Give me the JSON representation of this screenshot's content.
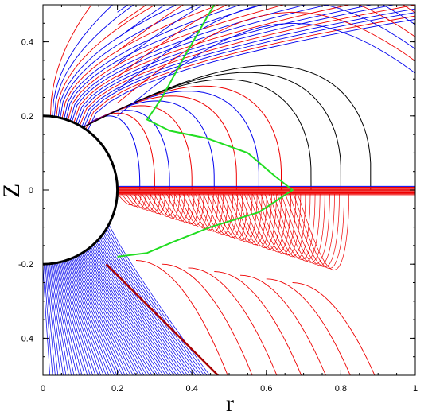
{
  "chart_data": {
    "type": "line",
    "title": "",
    "xlabel": "r",
    "ylabel": "Z",
    "xlim": [
      0,
      1
    ],
    "ylim": [
      -0.5,
      0.5
    ],
    "x_ticks": [
      "0",
      "0.2",
      "0.4",
      "0.6",
      "0.8",
      "1"
    ],
    "y_ticks": [
      "0.4",
      "0.2",
      "0",
      "-0.2",
      "-0.4"
    ],
    "grid": false,
    "legend": "none",
    "colors": {
      "star": "#000000",
      "field_lines_blue": "#0000ee",
      "field_lines_red": "#ee0000",
      "field_lines_black": "#000000",
      "separatrix": "#22dd22"
    },
    "star_radius": 0.2,
    "upper_field_line_footpoints_r": [
      0.02,
      0.04,
      0.06,
      0.08,
      0.1,
      0.12
    ],
    "upper_field_line_tops_z": [
      0.27,
      0.34,
      0.44,
      0.5,
      0.5,
      0.5
    ],
    "closed_loop_apex_r": [
      0.26,
      0.3,
      0.34,
      0.4,
      0.46,
      0.52,
      0.58,
      0.64,
      0.72,
      0.8,
      0.88
    ],
    "disk_plane_z": 0,
    "disk_extent_r": [
      0.2,
      1.0
    ],
    "accretion_stream_start": [
      0.17,
      -0.2
    ],
    "accretion_stream_end": [
      0.47,
      -0.5
    ],
    "separatrix_points": [
      [
        0.46,
        0.5
      ],
      [
        0.38,
        0.36
      ],
      [
        0.32,
        0.25
      ],
      [
        0.28,
        0.19
      ],
      [
        0.34,
        0.16
      ],
      [
        0.44,
        0.14
      ],
      [
        0.55,
        0.1
      ],
      [
        0.62,
        0.04
      ],
      [
        0.67,
        0.0
      ],
      [
        0.58,
        -0.06
      ],
      [
        0.45,
        -0.1
      ],
      [
        0.35,
        -0.14
      ],
      [
        0.28,
        -0.17
      ],
      [
        0.2,
        -0.18
      ]
    ]
  }
}
